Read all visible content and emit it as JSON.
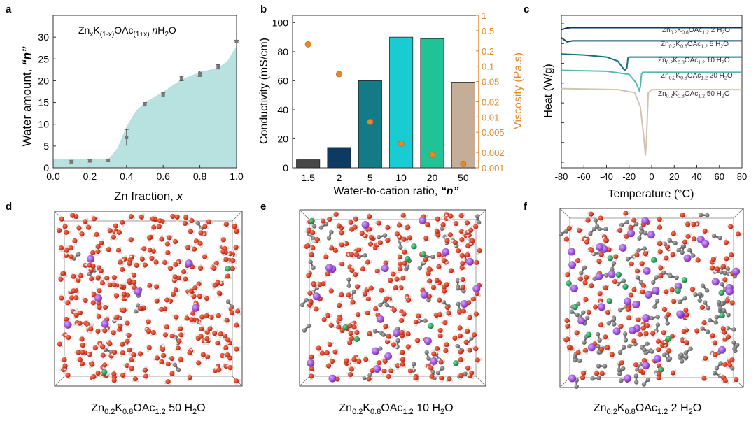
{
  "panels": {
    "a": {
      "letter": "a",
      "title_parts": [
        "Zn",
        "x",
        "K",
        "(1-x)",
        "OAc",
        "(1+x)",
        " ",
        "n",
        "H",
        "2",
        "O"
      ],
      "xlabel": "Zn fraction, ",
      "xlabel_var": "x",
      "ylabel": "Water amount, ",
      "ylabel_var": "“n”"
    },
    "b": {
      "letter": "b",
      "ylabel_left": "Conductivity (mS/cm)",
      "ylabel_right": "Viscosity (Pa.s)",
      "xlabel": "Water-to-cation ratio, ",
      "xlabel_var": "“n”"
    },
    "c": {
      "letter": "c",
      "ylabel": "Heat (W/g)",
      "xlabel": "Temperature (°C)"
    },
    "d": {
      "letter": "d",
      "caption": [
        "Zn",
        "0.2",
        "K",
        "0.8",
        "OAc",
        "1.2",
        " 50 H",
        "2",
        "O"
      ]
    },
    "e": {
      "letter": "e",
      "caption": [
        "Zn",
        "0.2",
        "K",
        "0.8",
        "OAc",
        "1.2",
        " 10 H",
        "2",
        "O"
      ]
    },
    "f": {
      "letter": "f",
      "caption": [
        "Zn",
        "0.2",
        "K",
        "0.8",
        "OAc",
        "1.2",
        " 2 H",
        "2",
        "O"
      ]
    }
  },
  "chart_data": [
    {
      "id": "a",
      "type": "scatter",
      "title": "ZnxK(1-x)OAc(1+x) nH2O",
      "xlabel": "Zn fraction, x",
      "ylabel": "Water amount, “n”",
      "xlim": [
        0,
        1.0
      ],
      "ylim": [
        0,
        35
      ],
      "xticks": [
        0.0,
        0.2,
        0.4,
        0.6,
        0.8,
        1.0
      ],
      "xtick_labels": [
        "0.0",
        "0.2",
        "0.4",
        "0.6",
        "0.8",
        "1.0"
      ],
      "yticks": [
        0,
        5,
        10,
        15,
        20,
        25,
        30
      ],
      "points": [
        {
          "x": 0.1,
          "y": 1.4,
          "err": 0.3
        },
        {
          "x": 0.2,
          "y": 1.6,
          "err": 0.3
        },
        {
          "x": 0.3,
          "y": 1.7,
          "err": 0.3
        },
        {
          "x": 0.4,
          "y": 7.0,
          "err": 1.8
        },
        {
          "x": 0.5,
          "y": 14.6,
          "err": 0.4
        },
        {
          "x": 0.6,
          "y": 16.8,
          "err": 0.5
        },
        {
          "x": 0.7,
          "y": 20.5,
          "err": 0.5
        },
        {
          "x": 0.8,
          "y": 21.6,
          "err": 0.6
        },
        {
          "x": 0.9,
          "y": 23.2,
          "err": 0.5
        },
        {
          "x": 1.0,
          "y": 29.0,
          "err": 0.3
        }
      ],
      "area": [
        [
          0,
          2
        ],
        [
          0.3,
          2
        ],
        [
          0.35,
          4.5
        ],
        [
          0.4,
          9.5
        ],
        [
          0.45,
          13
        ],
        [
          0.5,
          15
        ],
        [
          0.6,
          17.5
        ],
        [
          0.7,
          20.3
        ],
        [
          0.8,
          22
        ],
        [
          0.9,
          23
        ],
        [
          0.95,
          24.5
        ],
        [
          1.0,
          28
        ]
      ],
      "area_color": "#b8e2e0",
      "point_color": "#777777"
    },
    {
      "id": "b",
      "type": "bar",
      "xlabel": "Water-to-cation ratio, “n”",
      "ylabel": "Conductivity (mS/cm)",
      "ylabel_right": "Viscosity (Pa.s)",
      "ylim": [
        0,
        105
      ],
      "yticks": [
        0,
        20,
        40,
        60,
        80,
        100
      ],
      "categories": [
        "1.5",
        "2",
        "5",
        "10",
        "20",
        "50"
      ],
      "series": [
        {
          "name": "Conductivity",
          "values": [
            5.5,
            14,
            60,
            90,
            89,
            59
          ]
        },
        {
          "name": "Viscosity",
          "axis": "right",
          "values": [
            0.27,
            0.07,
            0.008,
            0.003,
            0.0018,
            0.0012
          ]
        }
      ],
      "bar_colors": [
        "#474747",
        "#0c3a60",
        "#137b86",
        "#19ccd4",
        "#1fc396",
        "#c5ae98"
      ],
      "right_ylim": [
        0.001,
        1
      ],
      "right_ticks": [
        0.001,
        0.002,
        0.005,
        0.01,
        0.02,
        0.05,
        0.1,
        0.2,
        0.5,
        1
      ],
      "right_tick_labels": [
        "0.001",
        "0.002",
        "0.005",
        "0.01",
        "0.02",
        "0.05",
        "0.1",
        "0.2",
        "0.5",
        "1"
      ],
      "right_color": "#e08a2c"
    },
    {
      "id": "c",
      "type": "line",
      "xlabel": "Temperature (°C)",
      "ylabel": "Heat (W/g)",
      "xlim": [
        -80,
        80
      ],
      "ylim": [
        -70,
        5
      ],
      "xticks": [
        -80,
        -60,
        -40,
        -20,
        0,
        20,
        40,
        60,
        80
      ],
      "series": [
        {
          "name": "Zn0.2K0.8OAc1.2 2 H2O",
          "color": "#0e3657",
          "points": [
            [
              -80,
              -2
            ],
            [
              -75,
              -1.2
            ],
            [
              -70,
              -1
            ],
            [
              80,
              -1
            ]
          ]
        },
        {
          "name": "Zn0.2K0.8OAc1.2 5 H2O",
          "color": "#124a66",
          "points": [
            [
              -80,
              -6
            ],
            [
              -75,
              -8
            ],
            [
              -70,
              -7.5
            ],
            [
              80,
              -7.5
            ]
          ]
        },
        {
          "name": "Zn0.2K0.8OAc1.2 10 H2O",
          "color": "#16707e",
          "points": [
            [
              -80,
              -14
            ],
            [
              -60,
              -14.5
            ],
            [
              -40,
              -15.5
            ],
            [
              -30,
              -17.5
            ],
            [
              -24,
              -22
            ],
            [
              -22,
              -21
            ],
            [
              -21,
              -16
            ],
            [
              -20,
              -15.5
            ],
            [
              80,
              -15.5
            ]
          ]
        },
        {
          "name": "Zn0.2K0.8OAc1.2 20 H2O",
          "color": "#56b8b0",
          "points": [
            [
              -80,
              -22
            ],
            [
              -40,
              -22.5
            ],
            [
              -20,
              -24
            ],
            [
              -14,
              -28
            ],
            [
              -11,
              -32
            ],
            [
              -10,
              -30
            ],
            [
              -9,
              -24
            ],
            [
              -8,
              -23
            ],
            [
              80,
              -23
            ]
          ]
        },
        {
          "name": "Zn0.2K0.8OAc1.2 50 H2O",
          "color": "#d4c3b2",
          "points": [
            [
              -80,
              -31
            ],
            [
              -30,
              -31.5
            ],
            [
              -15,
              -33
            ],
            [
              -10,
              -40
            ],
            [
              -7,
              -55
            ],
            [
              -5.5,
              -64
            ],
            [
              -4.5,
              -55
            ],
            [
              -3,
              -33
            ],
            [
              0,
              -31.5
            ],
            [
              80,
              -31.5
            ]
          ]
        }
      ],
      "legend": [
        [
          "Zn",
          "0.2",
          "K",
          "0.8",
          "OAc",
          "1.2",
          " 2 H",
          "2",
          "O"
        ],
        [
          "Zn",
          "0.2",
          "K",
          "0.8",
          "OAc",
          "1.2",
          " 5 H",
          "2",
          "O"
        ],
        [
          "Zn",
          "0.2",
          "K",
          "0.8",
          "OAc",
          "1.2",
          " 10 H",
          "2",
          "O"
        ],
        [
          "Zn",
          "0.2",
          "K",
          "0.8",
          "OAc",
          "1.2",
          " 20 H",
          "2",
          "O"
        ],
        [
          "Zn",
          "0.2",
          "K",
          "0.8",
          "OAc",
          "1.2",
          " 50 H",
          "2",
          "O"
        ]
      ]
    }
  ],
  "md_legend_colors": {
    "oxygen": "#c8321e",
    "hydrogen": "#f2f2f2",
    "carbon": "#7a7a7a",
    "potassium": "#9a4fd3",
    "zinc": "#2d9a5b"
  }
}
